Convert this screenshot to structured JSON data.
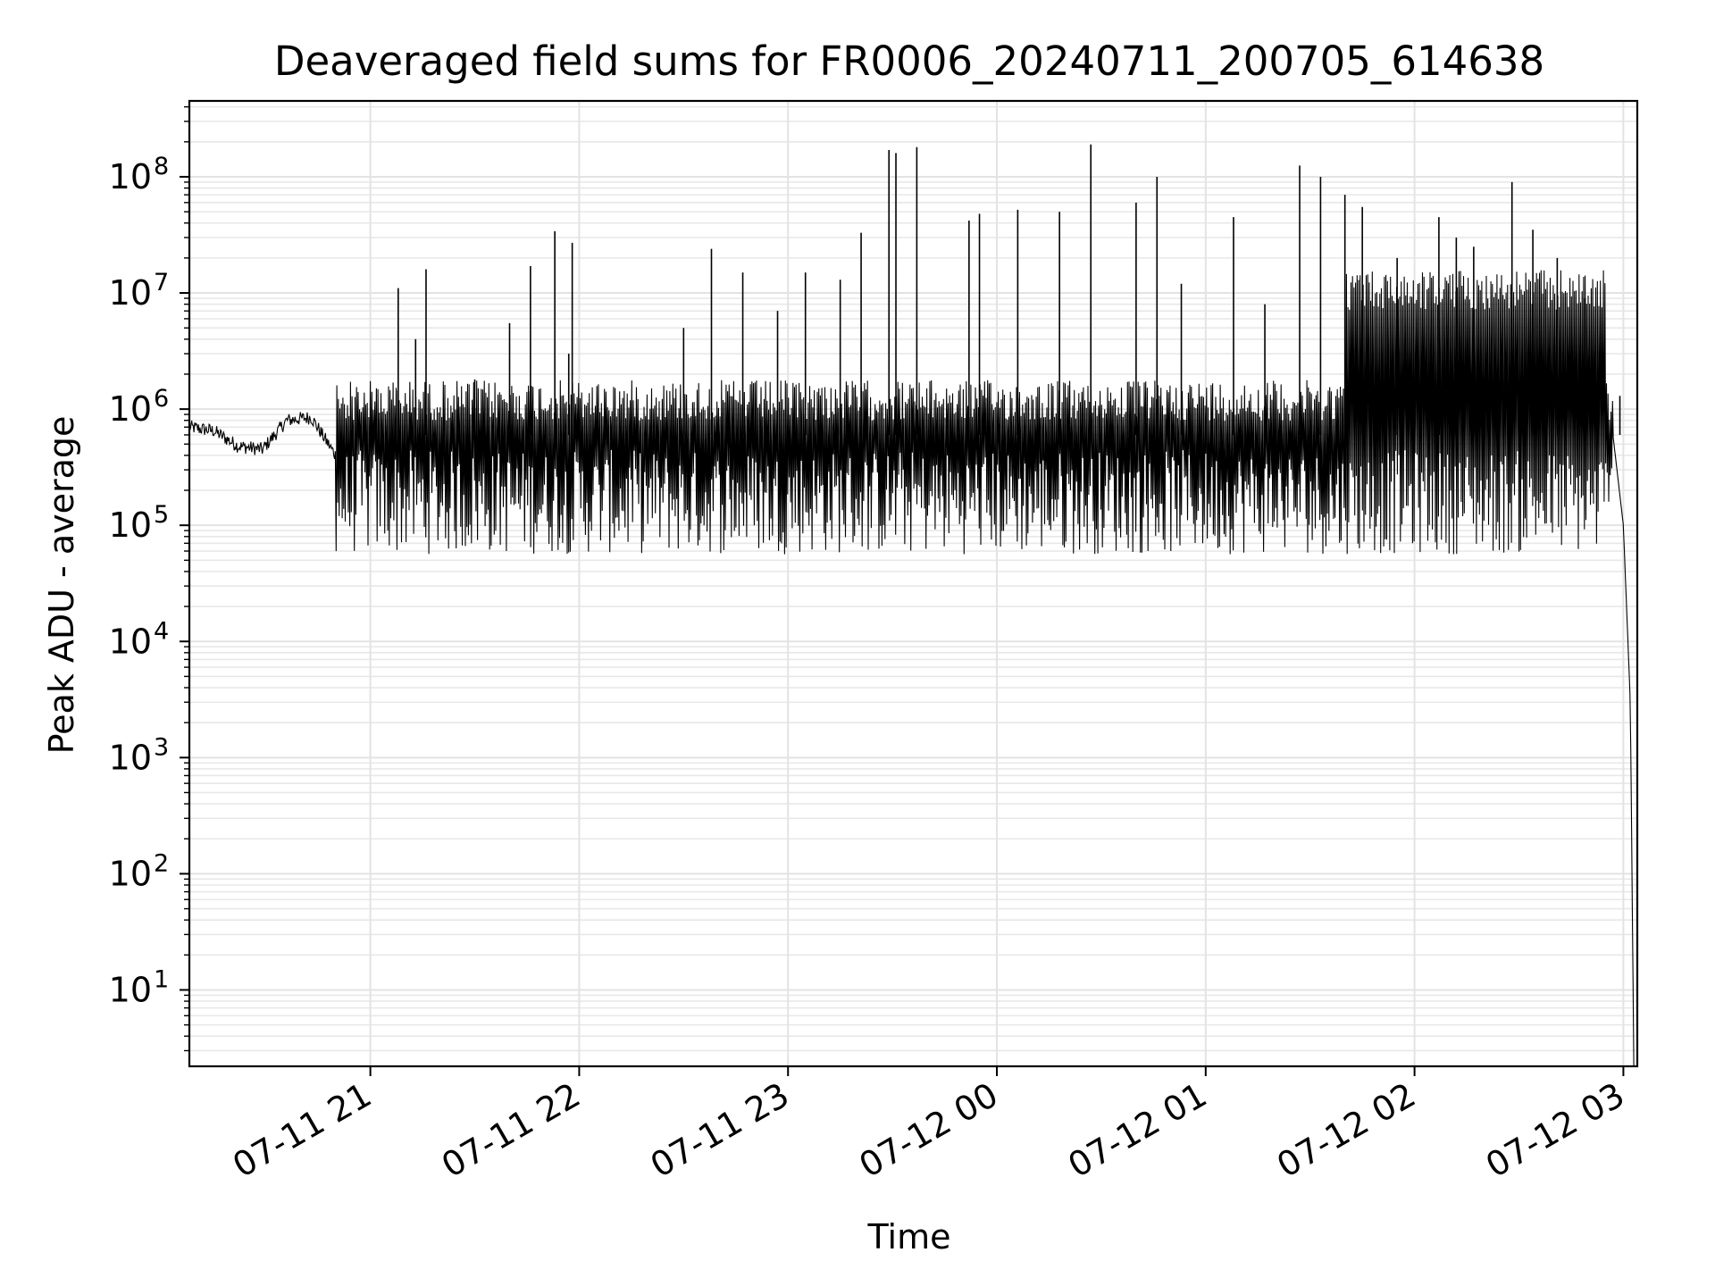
{
  "chart_data": {
    "type": "line",
    "title": "Deaveraged field sums for FR0006_20240711_200705_614638",
    "xlabel": "Time",
    "ylabel": "Peak ADU - average",
    "yscale": "log",
    "grid": true,
    "x_tick_labels": [
      "07-11 21",
      "07-11 22",
      "07-11 23",
      "07-12 00",
      "07-12 01",
      "07-12 02",
      "07-12 03"
    ],
    "x_ticks": [
      "2024-07-11 21:00",
      "2024-07-11 22:00",
      "2024-07-11 23:00",
      "2024-07-12 00:00",
      "2024-07-12 01:00",
      "2024-07-12 02:00",
      "2024-07-12 03:00"
    ],
    "xlim": [
      "2024-07-11 20:08",
      "2024-07-12 03:04"
    ],
    "y_ticks": [
      {
        "base": "10",
        "exp": "1",
        "value": 10
      },
      {
        "base": "10",
        "exp": "2",
        "value": 100
      },
      {
        "base": "10",
        "exp": "3",
        "value": 1000
      },
      {
        "base": "10",
        "exp": "4",
        "value": 10000
      },
      {
        "base": "10",
        "exp": "5",
        "value": 100000
      },
      {
        "base": "10",
        "exp": "6",
        "value": 1000000
      },
      {
        "base": "10",
        "exp": "7",
        "value": 10000000
      },
      {
        "base": "10",
        "exp": "8",
        "value": 100000000
      }
    ],
    "ylim": [
      2.2,
      450000000
    ],
    "series": [
      {
        "color": "#000000",
        "x": [
          "2024-07-11 20:08",
          "2024-07-11 20:15",
          "2024-07-11 20:22",
          "2024-07-11 20:29",
          "2024-07-11 20:36",
          "2024-07-11 20:43",
          "2024-07-11 20:50",
          "2024-07-11 20:57",
          "2024-07-11 21:10",
          "2024-07-11 21:30",
          "2024-07-11 22:00",
          "2024-07-11 22:30",
          "2024-07-11 23:00",
          "2024-07-11 23:30",
          "2024-07-12 00:00",
          "2024-07-12 00:30",
          "2024-07-12 01:00",
          "2024-07-12 01:20",
          "2024-07-12 01:35",
          "2024-07-12 01:50",
          "2024-07-12 02:10",
          "2024-07-12 02:30",
          "2024-07-12 02:50",
          "2024-07-12 02:57",
          "2024-07-12 03:00",
          "2024-07-12 03:02",
          "2024-07-12 03:03"
        ],
        "y": [
          700000,
          650000,
          480000,
          450000,
          800000,
          850000,
          400000,
          280000,
          200000,
          300000,
          350000,
          300000,
          400000,
          350000,
          600000,
          250000,
          200000,
          90000,
          80000,
          2500000,
          1500000,
          500000,
          900000,
          600000,
          100000,
          3000,
          2.2
        ]
      }
    ],
    "spikes": [
      {
        "x": "2024-07-11 21:08",
        "y": 11000000
      },
      {
        "x": "2024-07-11 21:13",
        "y": 4000000
      },
      {
        "x": "2024-07-11 21:16",
        "y": 16000000
      },
      {
        "x": "2024-07-11 21:30",
        "y": 1800000
      },
      {
        "x": "2024-07-11 21:40",
        "y": 5500000
      },
      {
        "x": "2024-07-11 21:46",
        "y": 17000000
      },
      {
        "x": "2024-07-11 21:53",
        "y": 34000000
      },
      {
        "x": "2024-07-11 21:57",
        "y": 3000000
      },
      {
        "x": "2024-07-11 21:58",
        "y": 27000000
      },
      {
        "x": "2024-07-11 22:30",
        "y": 5000000
      },
      {
        "x": "2024-07-11 22:38",
        "y": 24000000
      },
      {
        "x": "2024-07-11 22:47",
        "y": 15000000
      },
      {
        "x": "2024-07-11 22:57",
        "y": 7000000
      },
      {
        "x": "2024-07-11 23:05",
        "y": 15000000
      },
      {
        "x": "2024-07-11 23:15",
        "y": 13000000
      },
      {
        "x": "2024-07-11 23:21",
        "y": 33000000
      },
      {
        "x": "2024-07-11 23:29",
        "y": 170000000
      },
      {
        "x": "2024-07-11 23:31",
        "y": 160000000
      },
      {
        "x": "2024-07-11 23:37",
        "y": 180000000
      },
      {
        "x": "2024-07-11 23:52",
        "y": 42000000
      },
      {
        "x": "2024-07-11 23:55",
        "y": 48000000
      },
      {
        "x": "2024-07-12 00:06",
        "y": 52000000
      },
      {
        "x": "2024-07-12 00:18",
        "y": 50000000
      },
      {
        "x": "2024-07-12 00:27",
        "y": 190000000
      },
      {
        "x": "2024-07-12 00:40",
        "y": 60000000
      },
      {
        "x": "2024-07-12 00:46",
        "y": 100000000
      },
      {
        "x": "2024-07-12 00:53",
        "y": 12000000
      },
      {
        "x": "2024-07-12 01:08",
        "y": 45000000
      },
      {
        "x": "2024-07-12 01:17",
        "y": 8000000
      },
      {
        "x": "2024-07-12 01:27",
        "y": 125000000
      },
      {
        "x": "2024-07-12 01:33",
        "y": 100000000
      },
      {
        "x": "2024-07-12 01:40",
        "y": 70000000
      },
      {
        "x": "2024-07-12 01:45",
        "y": 55000000
      },
      {
        "x": "2024-07-12 01:55",
        "y": 20000000
      },
      {
        "x": "2024-07-12 02:07",
        "y": 45000000
      },
      {
        "x": "2024-07-12 02:12",
        "y": 30000000
      },
      {
        "x": "2024-07-12 02:17",
        "y": 25000000
      },
      {
        "x": "2024-07-12 02:28",
        "y": 90000000
      },
      {
        "x": "2024-07-12 02:34",
        "y": 35000000
      },
      {
        "x": "2024-07-12 02:41",
        "y": 20000000
      },
      {
        "x": "2024-07-12 02:49",
        "y": 9000000
      },
      {
        "x": "2024-07-12 02:59",
        "y": 1300000
      }
    ]
  }
}
